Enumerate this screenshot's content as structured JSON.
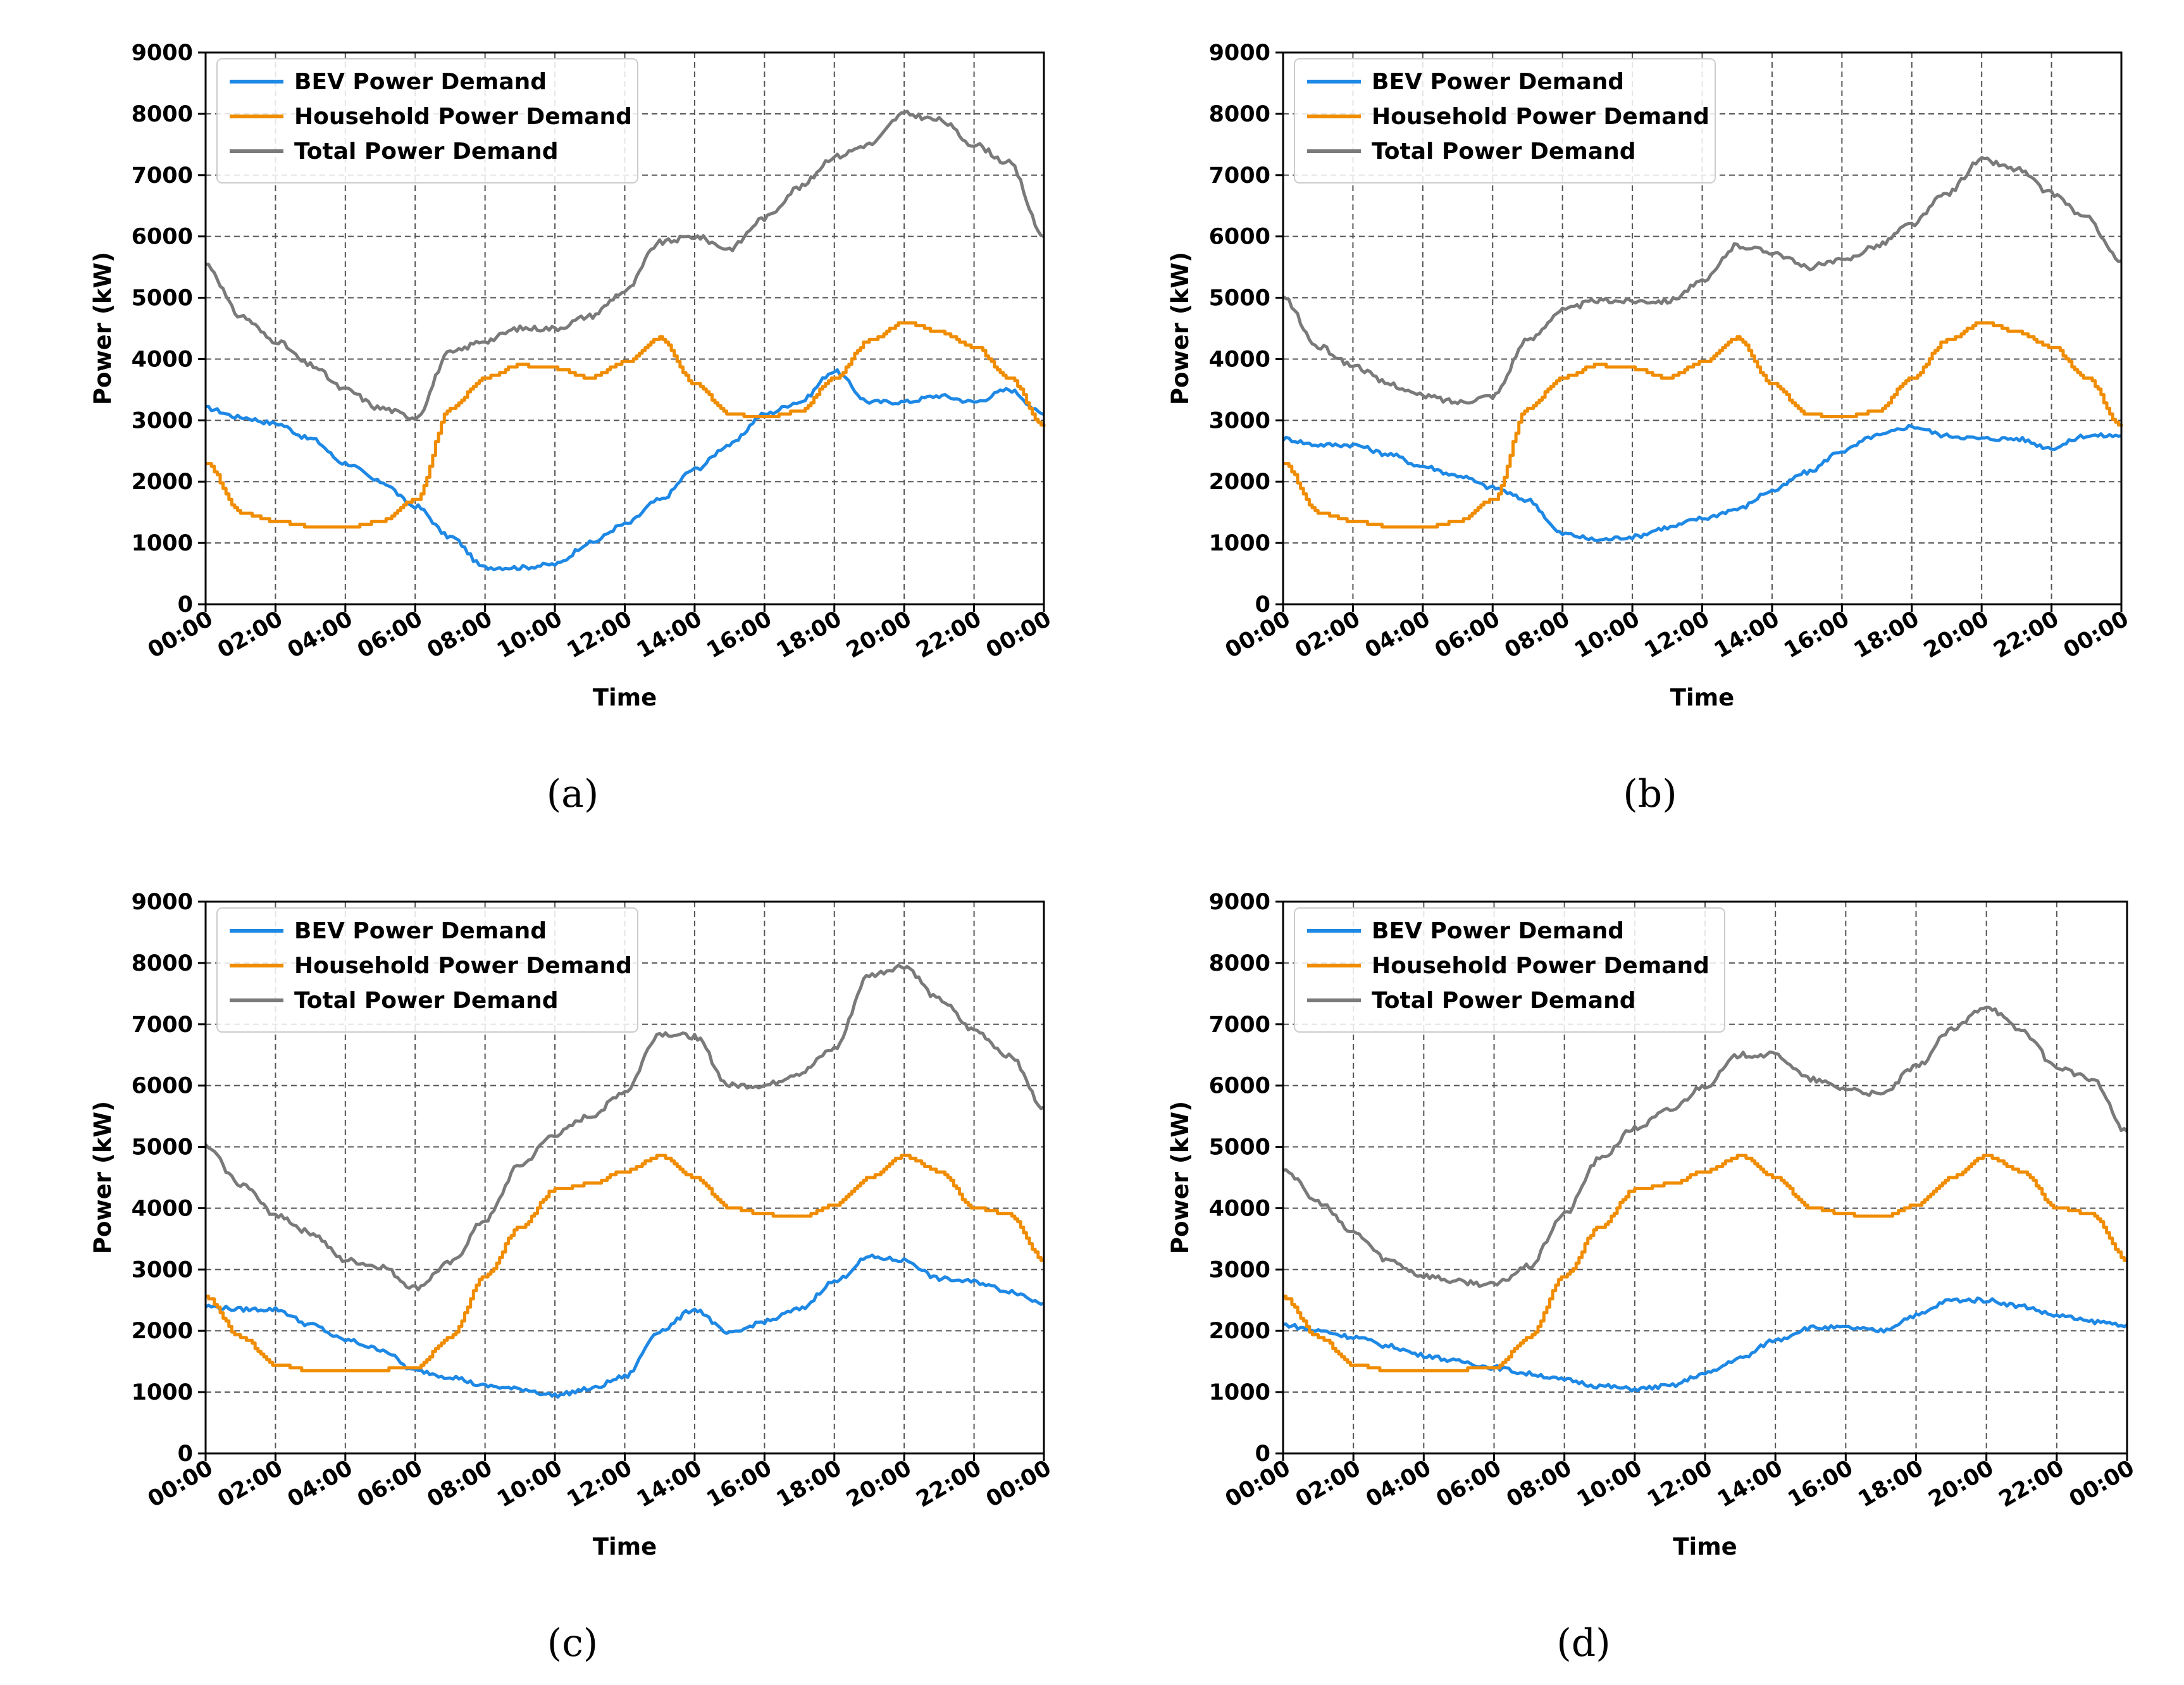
{
  "colors": {
    "bev": "#1e88e5",
    "household": "#f08c00",
    "total": "#7a7a7a",
    "grid": "#555555"
  },
  "chart_data": [
    {
      "type": "line",
      "caption": "(a)",
      "xlabel": "Time",
      "ylabel": "Power (kW)",
      "xlim": [
        0,
        24
      ],
      "ylim": [
        0,
        9000
      ],
      "grid": true,
      "legend_position": "top-left",
      "x_tick_labels": [
        "00:00",
        "02:00",
        "04:00",
        "06:00",
        "08:00",
        "10:00",
        "12:00",
        "14:00",
        "16:00",
        "18:00",
        "20:00",
        "22:00",
        "00:00"
      ],
      "y_tick_labels": [
        "0",
        "1000",
        "2000",
        "3000",
        "4000",
        "5000",
        "6000",
        "7000",
        "8000",
        "9000"
      ],
      "x": [
        0,
        1,
        2,
        3,
        4,
        5,
        6,
        7,
        8,
        9,
        10,
        11,
        12,
        13,
        14,
        15,
        16,
        17,
        18,
        19,
        20,
        21,
        22,
        23,
        24
      ],
      "series": [
        {
          "name": "BEV Power Demand",
          "values": [
            3200,
            3050,
            2950,
            2700,
            2300,
            2000,
            1600,
            1100,
            600,
            600,
            650,
            1000,
            1300,
            1700,
            2200,
            2600,
            3100,
            3300,
            3800,
            3300,
            3300,
            3400,
            3300,
            3500,
            3100
          ]
        },
        {
          "name": "Household Power Demand",
          "values": [
            2300,
            1500,
            1350,
            1270,
            1250,
            1350,
            1700,
            3200,
            3700,
            3900,
            3850,
            3700,
            3950,
            4350,
            3600,
            3100,
            3050,
            3150,
            3700,
            4300,
            4600,
            4450,
            4200,
            3700,
            2900
          ]
        },
        {
          "name": "Total Power Demand",
          "values": [
            5550,
            4700,
            4300,
            3900,
            3500,
            3200,
            3050,
            4100,
            4300,
            4500,
            4500,
            4700,
            5100,
            5900,
            6000,
            5800,
            6300,
            6800,
            7300,
            7500,
            8000,
            7900,
            7500,
            7200,
            6000
          ]
        }
      ]
    },
    {
      "type": "line",
      "caption": "(b)",
      "xlabel": "Time",
      "ylabel": "Power (kW)",
      "xlim": [
        0,
        24
      ],
      "ylim": [
        0,
        9000
      ],
      "grid": true,
      "legend_position": "top-left",
      "x_tick_labels": [
        "00:00",
        "02:00",
        "04:00",
        "06:00",
        "08:00",
        "10:00",
        "12:00",
        "14:00",
        "16:00",
        "18:00",
        "20:00",
        "22:00",
        "00:00"
      ],
      "y_tick_labels": [
        "0",
        "1000",
        "2000",
        "3000",
        "4000",
        "5000",
        "6000",
        "7000",
        "8000",
        "9000"
      ],
      "x": [
        0,
        1,
        2,
        3,
        4,
        5,
        6,
        7,
        8,
        9,
        10,
        11,
        12,
        13,
        14,
        15,
        16,
        17,
        18,
        19,
        20,
        21,
        22,
        23,
        24
      ],
      "series": [
        {
          "name": "BEV Power Demand",
          "values": [
            2700,
            2600,
            2600,
            2450,
            2250,
            2100,
            1900,
            1700,
            1150,
            1050,
            1100,
            1250,
            1400,
            1550,
            1850,
            2150,
            2500,
            2750,
            2900,
            2750,
            2700,
            2700,
            2550,
            2750,
            2750
          ]
        },
        {
          "name": "Household Power Demand",
          "values": [
            2300,
            1500,
            1350,
            1270,
            1250,
            1350,
            1700,
            3200,
            3700,
            3900,
            3850,
            3700,
            3950,
            4350,
            3600,
            3100,
            3050,
            3150,
            3700,
            4300,
            4600,
            4450,
            4200,
            3700,
            2900
          ]
        },
        {
          "name": "Total Power Demand",
          "values": [
            5000,
            4200,
            3900,
            3600,
            3400,
            3300,
            3400,
            4300,
            4800,
            4950,
            4950,
            4950,
            5250,
            5850,
            5750,
            5500,
            5600,
            5850,
            6200,
            6700,
            7250,
            7100,
            6700,
            6300,
            5600
          ]
        }
      ]
    },
    {
      "type": "line",
      "caption": "(c)",
      "xlabel": "Time",
      "ylabel": "Power (kW)",
      "xlim": [
        0,
        24
      ],
      "ylim": [
        0,
        9000
      ],
      "grid": true,
      "legend_position": "top-left",
      "x_tick_labels": [
        "00:00",
        "02:00",
        "04:00",
        "06:00",
        "08:00",
        "10:00",
        "12:00",
        "14:00",
        "16:00",
        "18:00",
        "20:00",
        "22:00",
        "00:00"
      ],
      "y_tick_labels": [
        "0",
        "1000",
        "2000",
        "3000",
        "4000",
        "5000",
        "6000",
        "7000",
        "8000",
        "9000"
      ],
      "x": [
        0,
        1,
        2,
        3,
        4,
        5,
        6,
        7,
        8,
        9,
        10,
        11,
        12,
        13,
        14,
        15,
        16,
        17,
        18,
        19,
        20,
        21,
        22,
        23,
        24
      ],
      "series": [
        {
          "name": "BEV Power Demand",
          "values": [
            2400,
            2350,
            2350,
            2100,
            1850,
            1700,
            1350,
            1250,
            1100,
            1050,
            950,
            1050,
            1250,
            2000,
            2350,
            1950,
            2150,
            2350,
            2800,
            3200,
            3150,
            2850,
            2800,
            2650,
            2450
          ]
        },
        {
          "name": "Household Power Demand",
          "values": [
            2550,
            1900,
            1450,
            1350,
            1350,
            1370,
            1400,
            1900,
            2900,
            3700,
            4300,
            4400,
            4600,
            4850,
            4500,
            4000,
            3900,
            3850,
            4050,
            4500,
            4850,
            4600,
            4000,
            3900,
            3150
          ]
        },
        {
          "name": "Total Power Demand",
          "values": [
            5000,
            4400,
            3900,
            3600,
            3150,
            3050,
            2700,
            3100,
            3800,
            4700,
            5200,
            5500,
            5900,
            6850,
            6800,
            6000,
            6000,
            6200,
            6600,
            7800,
            7950,
            7400,
            6900,
            6500,
            5650
          ]
        }
      ]
    },
    {
      "type": "line",
      "caption": "(d)",
      "xlabel": "Time",
      "ylabel": "Power (kW)",
      "xlim": [
        0,
        24
      ],
      "ylim": [
        0,
        9000
      ],
      "grid": true,
      "legend_position": "top-left",
      "x_tick_labels": [
        "00:00",
        "02:00",
        "04:00",
        "06:00",
        "08:00",
        "10:00",
        "12:00",
        "14:00",
        "16:00",
        "18:00",
        "20:00",
        "22:00",
        "00:00"
      ],
      "y_tick_labels": [
        "0",
        "1000",
        "2000",
        "3000",
        "4000",
        "5000",
        "6000",
        "7000",
        "8000",
        "9000"
      ],
      "x": [
        0,
        1,
        2,
        3,
        4,
        5,
        6,
        7,
        8,
        9,
        10,
        11,
        12,
        13,
        14,
        15,
        16,
        17,
        18,
        19,
        20,
        21,
        22,
        23,
        24
      ],
      "series": [
        {
          "name": "BEV Power Demand",
          "values": [
            2100,
            2000,
            1900,
            1750,
            1600,
            1500,
            1400,
            1300,
            1200,
            1100,
            1050,
            1100,
            1300,
            1550,
            1850,
            2050,
            2050,
            2000,
            2250,
            2500,
            2500,
            2400,
            2250,
            2150,
            2100
          ]
        },
        {
          "name": "Household Power Demand",
          "values": [
            2550,
            1900,
            1450,
            1350,
            1350,
            1370,
            1400,
            1900,
            2900,
            3700,
            4300,
            4400,
            4600,
            4850,
            4500,
            4000,
            3900,
            3850,
            4050,
            4500,
            4850,
            4600,
            4000,
            3900,
            3150
          ]
        },
        {
          "name": "Total Power Demand",
          "values": [
            4650,
            4100,
            3600,
            3150,
            2900,
            2800,
            2750,
            3050,
            3900,
            4800,
            5300,
            5600,
            6000,
            6500,
            6500,
            6100,
            5950,
            5850,
            6300,
            6900,
            7300,
            6900,
            6300,
            6100,
            5250
          ]
        }
      ]
    }
  ]
}
